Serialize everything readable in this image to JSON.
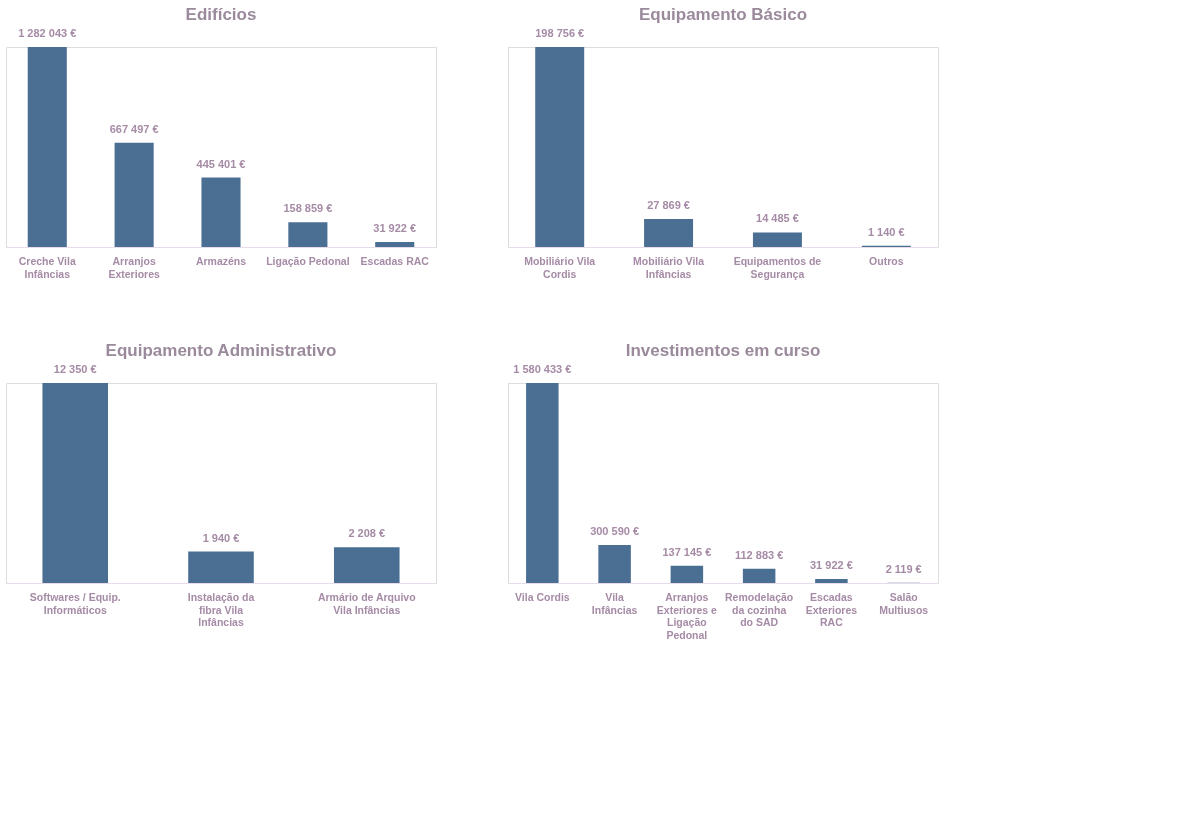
{
  "chart_data": [
    {
      "type": "bar",
      "title": "Edifícios",
      "categories": [
        "Creche Vila Infâncias",
        "Arranjos Exteriores",
        "Armazéns",
        "Ligação Pedonal",
        "Escadas RAC"
      ],
      "values": [
        1282043,
        667497,
        445401,
        158859,
        31922
      ],
      "value_labels": [
        "1 282 043 €",
        "667 497 €",
        "445 401 €",
        "158 859 €",
        "31 922 €"
      ],
      "color": "#4a6f93",
      "grid": false,
      "legend": false
    },
    {
      "type": "bar",
      "title": "Equipamento Básico",
      "categories": [
        "Mobiliário Vila Cordis",
        "Mobiliário Vila Infâncias",
        "Equipamentos de Segurança",
        "Outros"
      ],
      "values": [
        198756,
        27869,
        14485,
        1140
      ],
      "value_labels": [
        "198 756 €",
        "27 869 €",
        "14 485 €",
        "1 140 €"
      ],
      "color": "#4a6f93",
      "grid": false,
      "legend": false
    },
    {
      "type": "bar",
      "title": "Equipamento Administrativo",
      "categories": [
        "Softwares / Equip. Informáticos",
        "Instalação da fibra Vila Infâncias",
        "Armário de Arquivo Vila Infâncias"
      ],
      "values": [
        12350,
        1940,
        2208
      ],
      "value_labels": [
        "12 350 €",
        "1 940 €",
        "2 208 €"
      ],
      "color": "#4a6f93",
      "grid": false,
      "legend": false
    },
    {
      "type": "bar",
      "title": "Investimentos em curso",
      "categories": [
        "Vila Cordis",
        "Vila Infâncias",
        "Arranjos Exteriores e Ligação Pedonal",
        "Remodelação da cozinha do SAD",
        "Escadas Exteriores RAC",
        "Salão Multiusos"
      ],
      "values": [
        1580433,
        300590,
        137145,
        112883,
        31922,
        2119
      ],
      "value_labels": [
        "1 580 433 €",
        "300 590 €",
        "137 145 €",
        "112 883 €",
        "31 922 €",
        "2 119 €"
      ],
      "color": "#4a6f93",
      "grid": false,
      "legend": false
    }
  ]
}
